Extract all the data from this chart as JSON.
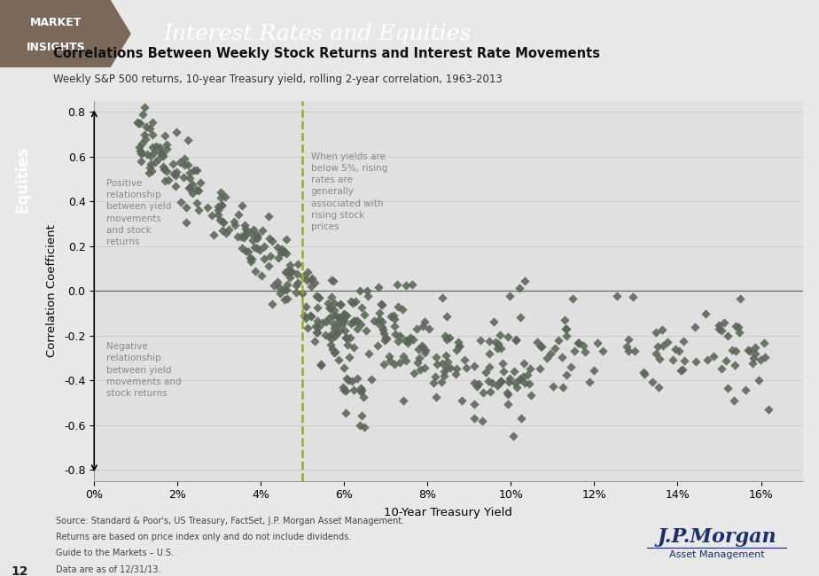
{
  "title": "Correlations Between Weekly Stock Returns and Interest Rate Movements",
  "subtitle": "Weekly S&P 500 returns, 10-year Treasury yield, rolling 2-year correlation, 1963-2013",
  "header_title": "Interest Rates and Equities",
  "xlabel": "10-Year Treasury Yield",
  "ylabel": "Correlation Coefficient",
  "xlim": [
    0,
    0.17
  ],
  "ylim": [
    -0.85,
    0.85
  ],
  "xticks": [
    0.0,
    0.02,
    0.04,
    0.06,
    0.08,
    0.1,
    0.12,
    0.14,
    0.16
  ],
  "xticklabels": [
    "0%",
    "2%",
    "4%",
    "6%",
    "8%",
    "10%",
    "12%",
    "14%",
    "16%"
  ],
  "yticks": [
    -0.8,
    -0.6,
    -0.4,
    -0.2,
    0.0,
    0.2,
    0.4,
    0.6,
    0.8
  ],
  "dashed_line_x": 0.05,
  "marker_color": "#5a6657",
  "marker_size": 28,
  "bg_color": "#e8e8e8",
  "plot_bg_color": "#e0e0e0",
  "header_bg_color": "#6b7b76",
  "header_dark_color": "#7a6858",
  "sidebar_color": "#7b8c2e",
  "annotation_yield_text": "When yields are\nbelow 5%, rising\nrates are\ngenerally\nassociated with\nrising stock\nprices",
  "annotation_positive_text": "Positive\nrelationship\nbetween yield\nmovements\nand stock\nreturns",
  "annotation_negative_text": "Negative\nrelationship\nbetween yield\nmovements and\nstock returns",
  "source_line1": "Source: Standard & Poor's, US Treasury, FactSet, J.P. Morgan Asset Management.",
  "source_line2": "Returns are based on price index only and do not include dividends.",
  "source_line3": "Guide to the Markets – U.S.",
  "source_line4": "Data are as of 12/31/13.",
  "page_number": "12"
}
